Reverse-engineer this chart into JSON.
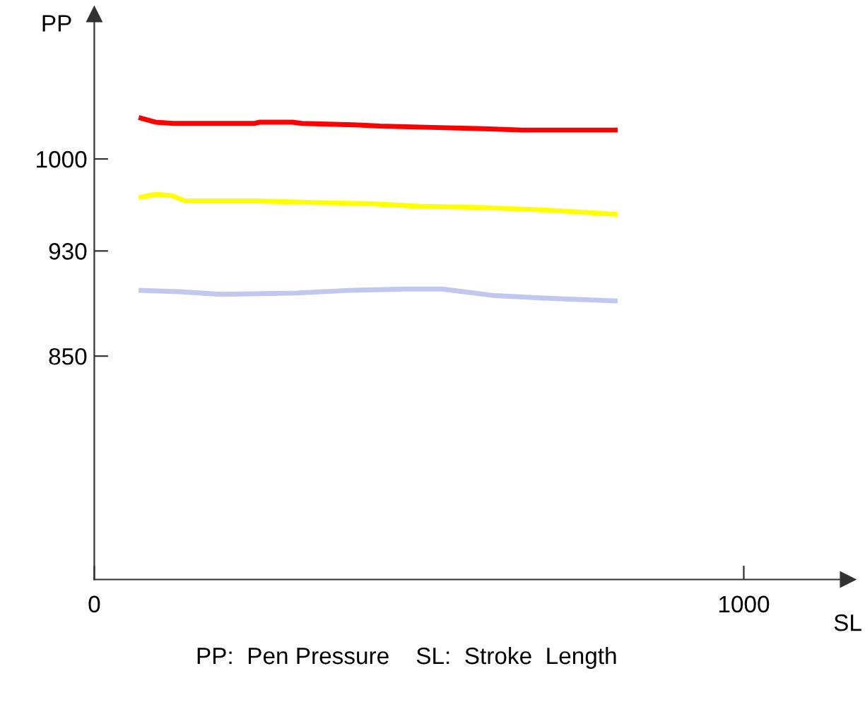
{
  "chart_data": {
    "type": "line",
    "xlabel": "SL",
    "ylabel": "PP",
    "xlim": [
      0,
      1160
    ],
    "ylim": [
      680,
      1110
    ],
    "xticks": [
      0,
      1000
    ],
    "yticks": [
      1000,
      930,
      850
    ],
    "grid": false,
    "marker": "none",
    "line_style": "solid",
    "annotations": [
      "PP:  Pen Pressure    SL:  Stroke  Length"
    ],
    "series": [
      {
        "color": "#ff0000",
        "x": [
          72,
          94,
          122,
          246,
          255,
          305,
          320,
          400,
          440,
          520,
          600,
          660,
          802
        ],
        "values": [
          1031,
          1028,
          1027,
          1027,
          1028,
          1028,
          1027,
          1026,
          1025,
          1024,
          1023,
          1022,
          1022
        ]
      },
      {
        "color": "#ffff00",
        "x": [
          72,
          95,
          120,
          140,
          250,
          330,
          420,
          500,
          600,
          700,
          802
        ],
        "values": [
          971,
          973,
          972,
          968,
          968,
          967,
          966,
          964,
          963,
          961,
          958
        ]
      },
      {
        "color": "#c0c8f0",
        "x": [
          72,
          131,
          196,
          312,
          392,
          479,
          536,
          617,
          697,
          802
        ],
        "values": [
          900,
          899,
          897,
          898,
          900,
          901,
          901,
          896,
          894,
          892
        ]
      }
    ]
  }
}
